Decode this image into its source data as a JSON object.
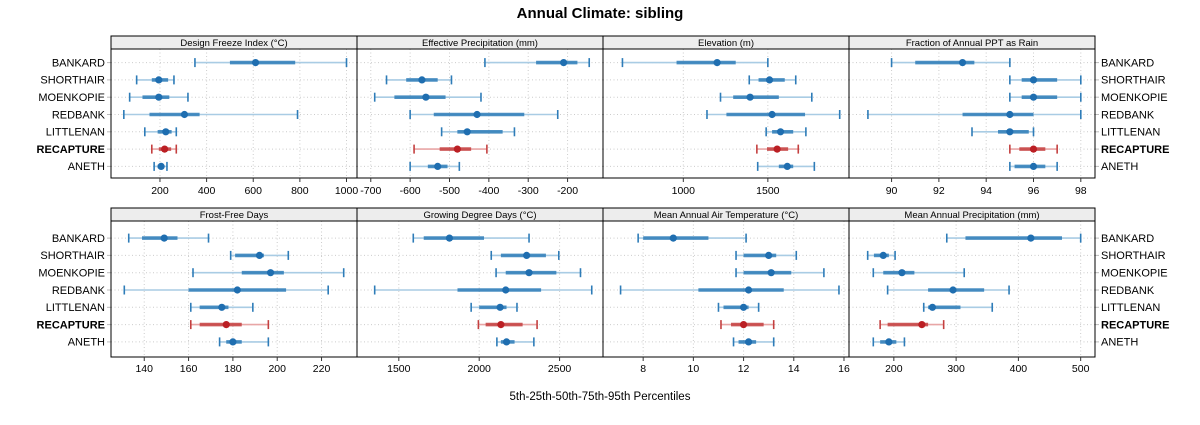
{
  "title": "Annual Climate: sibling",
  "caption": "5th-25th-50th-75th-95th Percentiles",
  "colors": {
    "blue_dot": "#1f6eb0",
    "blue_iqr": "#2e7cb8",
    "blue_whisker": "#a9cce4",
    "red_dot": "#bb1f24",
    "red_iqr": "#c43f3f",
    "red_whisker": "#e8a6a6",
    "strip_bg": "#ededed",
    "panel_border": "#000000",
    "grid": "#cccccc",
    "tick_text": "#000000"
  },
  "chart_data": {
    "type": "dotplot",
    "subtype": "percentile-intervals",
    "percentiles": [
      5,
      25,
      50,
      75,
      95
    ],
    "layout": "2 rows x 4 cols",
    "stations": [
      "BANKARD",
      "SHORTHAIR",
      "MOENKOPIE",
      "REDBANK",
      "LITTLENAN",
      "RECAPTURE",
      "ANETH"
    ],
    "highlight_station": "RECAPTURE",
    "panels": [
      {
        "title": "Design Freeze Index (°C)",
        "xlim": [
          -10,
          1045
        ],
        "ticks": [
          200,
          400,
          600,
          800,
          1000
        ],
        "values": [
          [
            350,
            500,
            610,
            780,
            1000
          ],
          [
            100,
            165,
            195,
            235,
            260
          ],
          [
            70,
            125,
            195,
            240,
            320
          ],
          [
            45,
            155,
            305,
            370,
            790
          ],
          [
            135,
            190,
            225,
            250,
            270
          ],
          [
            165,
            195,
            220,
            248,
            270
          ],
          [
            175,
            190,
            205,
            215,
            230
          ]
        ]
      },
      {
        "title": "Effective Precipitation (mm)",
        "xlim": [
          -735,
          -110
        ],
        "ticks": [
          -700,
          -600,
          -500,
          -400,
          -300,
          -200
        ],
        "values": [
          [
            -410,
            -280,
            -210,
            -175,
            -145
          ],
          [
            -660,
            -610,
            -570,
            -530,
            -495
          ],
          [
            -690,
            -640,
            -560,
            -510,
            -420
          ],
          [
            -600,
            -540,
            -430,
            -310,
            -225
          ],
          [
            -520,
            -480,
            -455,
            -365,
            -335
          ],
          [
            -590,
            -525,
            -480,
            -445,
            -405
          ],
          [
            -600,
            -555,
            -530,
            -505,
            -475
          ]
        ]
      },
      {
        "title": "Elevation (m)",
        "xlim": [
          525,
          1980
        ],
        "ticks": [
          1000,
          1500
        ],
        "values": [
          [
            640,
            960,
            1200,
            1310,
            1500
          ],
          [
            1390,
            1445,
            1510,
            1600,
            1665
          ],
          [
            1220,
            1295,
            1395,
            1565,
            1760
          ],
          [
            1140,
            1255,
            1525,
            1720,
            1925
          ],
          [
            1490,
            1525,
            1575,
            1650,
            1725
          ],
          [
            1435,
            1495,
            1555,
            1620,
            1680
          ],
          [
            1440,
            1565,
            1615,
            1650,
            1775
          ]
        ]
      },
      {
        "title": "Fraction of Annual PPT as Rain",
        "xlim": [
          88.2,
          98.6
        ],
        "ticks": [
          90,
          92,
          94,
          96,
          98
        ],
        "values": [
          [
            90,
            91,
            93,
            93.5,
            95
          ],
          [
            95,
            95.5,
            96,
            97,
            98
          ],
          [
            95,
            95.5,
            96,
            97,
            98
          ],
          [
            89,
            93,
            95,
            96,
            98
          ],
          [
            93.4,
            94.5,
            95,
            95.8,
            96
          ],
          [
            95,
            95.4,
            96,
            96.5,
            97
          ],
          [
            95,
            95.2,
            96,
            96.5,
            97
          ]
        ]
      },
      {
        "title": "Frost-Free Days",
        "xlim": [
          125,
          236
        ],
        "ticks": [
          140,
          160,
          180,
          200,
          220
        ],
        "values": [
          [
            133,
            139,
            149,
            155,
            169
          ],
          [
            179,
            181,
            192,
            194,
            205
          ],
          [
            162,
            184,
            197,
            203,
            230
          ],
          [
            131,
            160,
            182,
            204,
            223
          ],
          [
            161,
            165,
            175,
            178,
            189
          ],
          [
            161,
            165,
            177,
            184,
            196
          ],
          [
            174,
            177,
            180,
            184,
            196
          ]
        ]
      },
      {
        "title": "Growing Degree Days (°C)",
        "xlim": [
          1240,
          2770
        ],
        "ticks": [
          1500,
          2000,
          2500
        ],
        "values": [
          [
            1590,
            1655,
            1815,
            2030,
            2310
          ],
          [
            2075,
            2135,
            2295,
            2415,
            2495
          ],
          [
            2105,
            2165,
            2310,
            2480,
            2630
          ],
          [
            1350,
            1865,
            2165,
            2385,
            2700
          ],
          [
            1950,
            2000,
            2130,
            2170,
            2235
          ],
          [
            1995,
            2040,
            2135,
            2270,
            2360
          ],
          [
            2110,
            2135,
            2170,
            2220,
            2340
          ]
        ]
      },
      {
        "title": "Mean Annual Air Temperature (°C)",
        "xlim": [
          6.4,
          16.2
        ],
        "ticks": [
          8,
          10,
          12,
          14,
          16
        ],
        "values": [
          [
            7.8,
            8.0,
            9.2,
            10.6,
            12.1
          ],
          [
            11.7,
            12.0,
            13.0,
            13.3,
            14.1
          ],
          [
            11.7,
            12.0,
            13.1,
            13.9,
            15.2
          ],
          [
            7.1,
            10.2,
            12.2,
            13.6,
            15.8
          ],
          [
            11.0,
            11.2,
            12.0,
            12.2,
            12.6
          ],
          [
            11.1,
            11.5,
            12.0,
            12.8,
            13.2
          ],
          [
            11.6,
            11.8,
            12.2,
            12.5,
            13.2
          ]
        ]
      },
      {
        "title": "Mean Annual Precipitation (mm)",
        "xlim": [
          128,
          523
        ],
        "ticks": [
          200,
          300,
          400,
          500
        ],
        "values": [
          [
            285,
            315,
            420,
            470,
            500
          ],
          [
            158,
            168,
            183,
            192,
            202
          ],
          [
            167,
            183,
            213,
            233,
            313
          ],
          [
            190,
            255,
            295,
            345,
            385
          ],
          [
            248,
            255,
            262,
            307,
            358
          ],
          [
            178,
            190,
            245,
            255,
            280
          ],
          [
            167,
            178,
            192,
            204,
            217
          ]
        ]
      }
    ]
  }
}
